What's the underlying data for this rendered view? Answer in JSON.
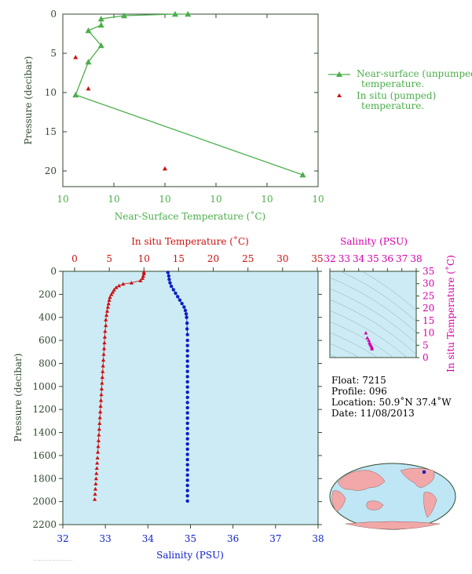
{
  "colors": {
    "green": "#4cae4c",
    "red": "#cc1111",
    "blue": "#0a1ec8",
    "magenta": "#d400a8",
    "axis": "#2f4a2f",
    "panel_bg": "#cdebf5"
  },
  "top_chart": {
    "xlabel": "Near-Surface Temperature (˚C)",
    "ylabel": "Pressure (decibar)",
    "xticks": [
      "10",
      "10",
      "10",
      "10",
      "10",
      "10"
    ],
    "yticks": [
      "0",
      "5",
      "10",
      "15",
      "20"
    ],
    "legend": {
      "line_label_1": "Near-surface (unpumped)",
      "line_label_2": "temperature.",
      "marker_label_1": "In situ (pumped)",
      "marker_label_2": "temperature."
    }
  },
  "main_chart": {
    "top_xlabel": "In situ Temperature (˚C)",
    "bottom_xlabel": "Salinity (PSU)",
    "ylabel": "Pressure (decibar)",
    "top_xticks": [
      "0",
      "5",
      "10",
      "15",
      "20",
      "25",
      "30",
      "35"
    ],
    "bottom_xticks": [
      "32",
      "33",
      "34",
      "35",
      "36",
      "37",
      "38"
    ],
    "yticks": [
      "0",
      "200",
      "400",
      "600",
      "800",
      "1000",
      "1200",
      "1400",
      "1600",
      "1800",
      "2000",
      "2200"
    ]
  },
  "ts_chart": {
    "top_xlabel": "Salinity (PSU)",
    "right_ylabel": "In situ Temperature (˚C)",
    "xticks": [
      "32",
      "33",
      "34",
      "35",
      "36",
      "37",
      "38"
    ],
    "yticks": [
      "0",
      "5",
      "10",
      "15",
      "20",
      "25",
      "30",
      "35"
    ]
  },
  "info": {
    "float": "Float:  7215",
    "profile": "Profile:  096",
    "location": "Location:  50.9˚N  37.4˚W",
    "date": "Date:  11/08/2013"
  },
  "chart_data": [
    {
      "type": "line",
      "name": "near-surface",
      "xlim": [
        0,
        1
      ],
      "ylim": [
        22,
        0
      ],
      "series": [
        {
          "name": "Near-surface (unpumped) temperature.",
          "x": [
            0.49,
            0.44,
            0.24,
            0.15,
            0.15,
            0.1,
            0.15,
            0.1,
            0.05,
            0.94
          ],
          "y": [
            0.0,
            0.0,
            0.2,
            0.6,
            1.4,
            2.1,
            4.0,
            6.1,
            10.3,
            20.5
          ]
        },
        {
          "name": "In situ (pumped) temperature.",
          "x": [
            0.05,
            0.1,
            0.4
          ],
          "y": [
            5.5,
            9.5,
            19.7
          ]
        }
      ]
    },
    {
      "type": "scatter",
      "name": "profile",
      "ylim": [
        2200,
        0
      ],
      "temperature_xlim": [
        0,
        35
      ],
      "salinity_xlim": [
        32,
        38
      ],
      "series": [
        {
          "name": "In situ Temperature (˚C)",
          "x": [
            10.0,
            10.0,
            9.9,
            9.8,
            9.5,
            8.2,
            7.0,
            6.4,
            6.0,
            5.7,
            5.5,
            5.3,
            5.1,
            5.0,
            4.9,
            4.8,
            4.7,
            4.6,
            4.5,
            4.5,
            4.4,
            4.35,
            4.3,
            4.25,
            4.2,
            4.15,
            4.1,
            4.05,
            4.0,
            3.95,
            3.9,
            3.85,
            3.8,
            3.75,
            3.7,
            3.65,
            3.6,
            3.55,
            3.5,
            3.45,
            3.4,
            3.35
          ],
          "y": [
            5,
            20,
            40,
            60,
            80,
            100,
            110,
            125,
            140,
            160,
            180,
            200,
            225,
            250,
            280,
            310,
            345,
            380,
            420,
            470,
            520,
            570,
            620,
            670,
            720,
            770,
            820,
            870,
            920,
            970,
            1020,
            1070,
            1120,
            1170,
            1220,
            1270,
            1320,
            1370,
            1420,
            1470,
            1520,
            1570
          ]
        },
        {
          "name": "Salinity (PSU)",
          "x": [
            34.47,
            34.49,
            34.5,
            34.52,
            34.55,
            34.6,
            34.65,
            34.7,
            34.75,
            34.8,
            34.85,
            34.88,
            34.9,
            34.91,
            34.92,
            34.92,
            34.93
          ],
          "y": [
            10,
            40,
            70,
            100,
            130,
            160,
            190,
            220,
            250,
            280,
            310,
            340,
            370,
            400,
            450,
            500,
            550
          ]
        }
      ]
    },
    {
      "type": "scatter",
      "name": "ts-diagram",
      "xlim": [
        32,
        38
      ],
      "ylim": [
        0,
        35
      ],
      "series": [
        {
          "name": "T-S",
          "x": [
            34.5,
            34.6,
            34.7,
            34.75,
            34.8,
            34.85,
            34.9,
            34.92,
            34.93
          ],
          "y": [
            10.0,
            8.0,
            7.0,
            6.0,
            5.5,
            5.0,
            4.5,
            4.0,
            3.5
          ]
        }
      ]
    }
  ]
}
